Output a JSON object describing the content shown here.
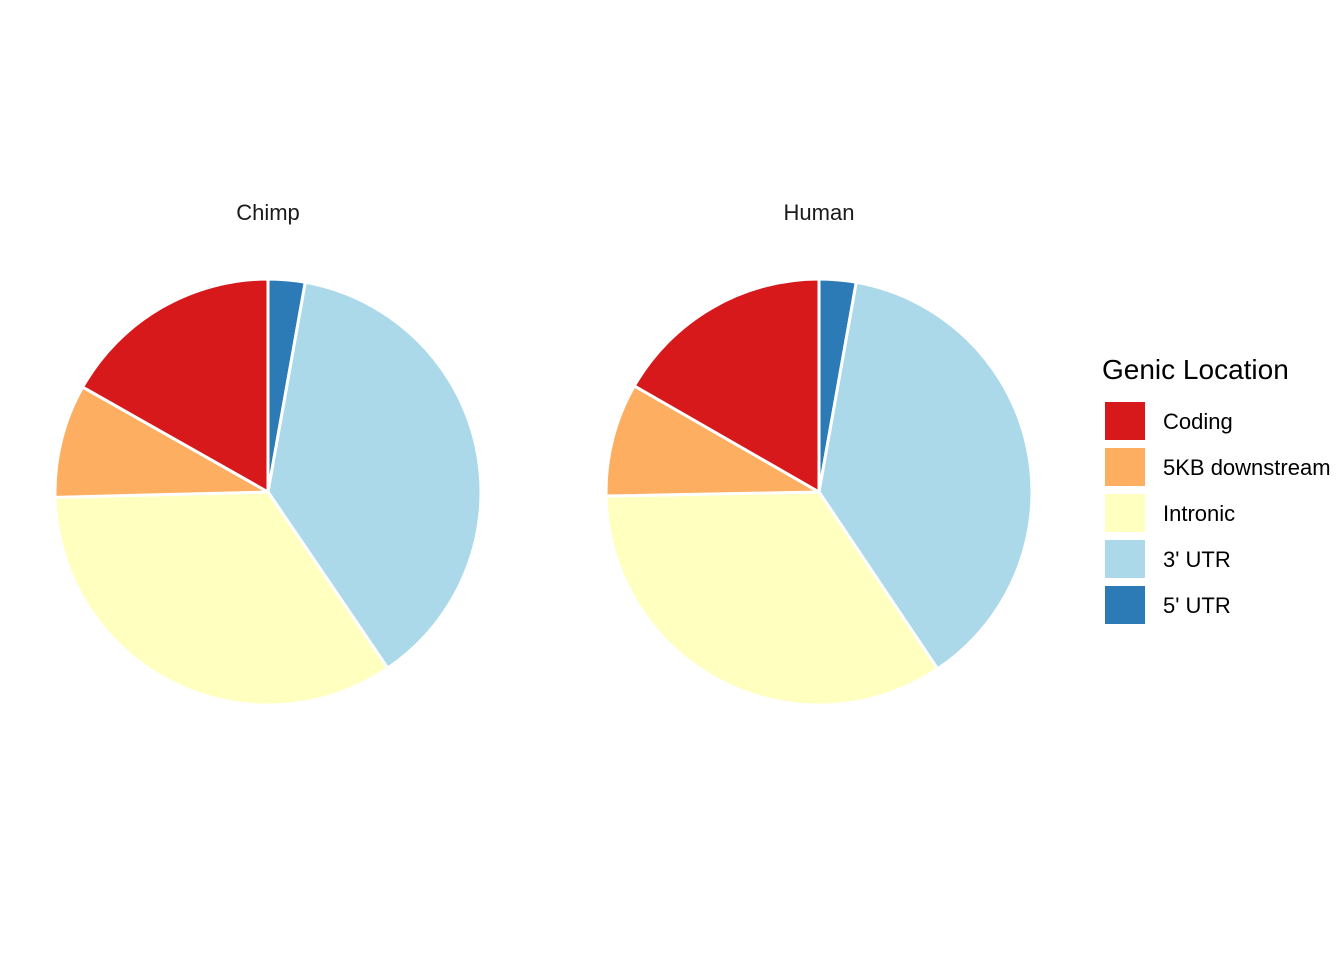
{
  "chart_data": {
    "type": "pie",
    "categories": [
      "5' UTR",
      "3' UTR",
      "Intronic",
      "5KB downstream",
      "Coding"
    ],
    "colors": {
      "Coding": "#d7191c",
      "5KB downstream": "#fdae61",
      "Intronic": "#ffffbf",
      "3' UTR": "#abd9e9",
      "5' UTR": "#2c7bb6"
    },
    "panels": [
      {
        "title": "Chimp",
        "values": [
          2.8,
          37.7,
          34.1,
          8.6,
          16.8
        ]
      },
      {
        "title": "Human",
        "values": [
          2.8,
          37.8,
          34.1,
          8.6,
          16.7
        ]
      }
    ],
    "legend": {
      "title": "Genic Location",
      "entries": [
        "Coding",
        "5KB downstream",
        "Intronic",
        "3' UTR",
        "5' UTR"
      ],
      "position": "right"
    }
  }
}
